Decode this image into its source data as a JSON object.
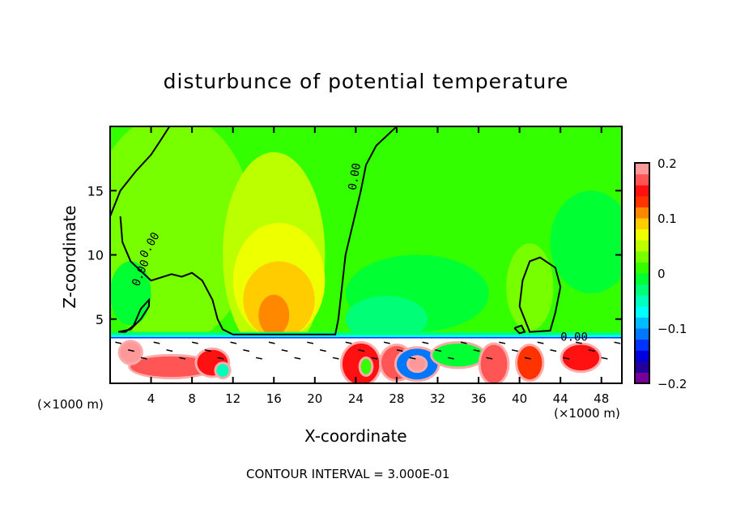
{
  "chart_data": {
    "type": "heatmap",
    "title": "disturbunce of potential temperature",
    "xlabel": "X-coordinate",
    "ylabel": "Z-coordinate",
    "x_unit_label": "(×1000 m)",
    "x_unit_label_right": "(×1000 m)",
    "xlim": [
      0,
      50
    ],
    "ylim": [
      0,
      20
    ],
    "xticks": [
      4,
      8,
      12,
      16,
      20,
      24,
      28,
      32,
      36,
      40,
      44,
      48
    ],
    "yticks": [
      5,
      10,
      15
    ],
    "colorbar": {
      "range": [
        -0.2,
        0.2
      ],
      "step": 0.02,
      "tick_values": [
        0.2,
        0.1,
        0,
        -0.1,
        -0.2
      ],
      "tick_labels": [
        "0.2",
        "0.1",
        "0",
        "−0.1",
        "−0.2"
      ],
      "colors_low_to_high": [
        "#770099",
        "#220099",
        "#0000dd",
        "#0033ff",
        "#0077ff",
        "#00bbff",
        "#00ffff",
        "#00ffbb",
        "#00ff77",
        "#00ff33",
        "#33ff00",
        "#77ff00",
        "#bbff00",
        "#eeff00",
        "#ffcc00",
        "#ff8800",
        "#ff3300",
        "#ff1111",
        "#ff5555",
        "#ff9999"
      ]
    },
    "background_value": 0.01,
    "features": [
      {
        "x": 6,
        "z": 12,
        "rx": 8,
        "rz": 9,
        "value": 0.025
      },
      {
        "x": 16,
        "z": 10,
        "rx": 5,
        "rz": 8,
        "value": 0.045
      },
      {
        "x": 16.5,
        "z": 8,
        "rx": 4.5,
        "rz": 4.5,
        "value": 0.065
      },
      {
        "x": 16.5,
        "z": 6.5,
        "rx": 3.5,
        "rz": 3,
        "value": 0.085
      },
      {
        "x": 16,
        "z": 5.3,
        "rx": 1.5,
        "rz": 1.6,
        "value": 0.11
      },
      {
        "x": 2,
        "z": 7,
        "rx": 2,
        "rz": 2.5,
        "value": -0.01
      },
      {
        "x": 30,
        "z": 7,
        "rx": 7,
        "rz": 3,
        "value": -0.01
      },
      {
        "x": 27,
        "z": 5,
        "rx": 4,
        "rz": 1.8,
        "value": -0.03
      },
      {
        "x": 47,
        "z": 11,
        "rx": 4,
        "rz": 4,
        "value": -0.01
      },
      {
        "x": 41,
        "z": 7.5,
        "rx": 2.3,
        "rz": 3.4,
        "value": 0.025
      }
    ],
    "lower_layer_top": 3.5,
    "lower_features": [
      {
        "x": 6,
        "z": 1.3,
        "rx": 4,
        "rz": 0.8,
        "value": 0.17
      },
      {
        "x": 2,
        "z": 2.4,
        "rx": 1,
        "rz": 0.8,
        "value": 0.19
      },
      {
        "x": 10,
        "z": 1.6,
        "rx": 1.5,
        "rz": 1,
        "value": 0.15
      },
      {
        "x": 11,
        "z": 1,
        "rx": 0.6,
        "rz": 0.5,
        "value": -0.05
      },
      {
        "x": 24.5,
        "z": 1.5,
        "rx": 1.8,
        "rz": 1.6,
        "value": 0.15
      },
      {
        "x": 25,
        "z": 1.3,
        "rx": 0.5,
        "rz": 0.6,
        "value": 0.0
      },
      {
        "x": 28,
        "z": 1.6,
        "rx": 1.5,
        "rz": 1.3,
        "value": 0.17
      },
      {
        "x": 30,
        "z": 1.5,
        "rx": 2,
        "rz": 1.2,
        "value": -0.12
      },
      {
        "x": 30,
        "z": 1.5,
        "rx": 0.8,
        "rz": 0.5,
        "value": 0.2
      },
      {
        "x": 34,
        "z": 2.2,
        "rx": 2.5,
        "rz": 0.9,
        "value": -0.02
      },
      {
        "x": 37.5,
        "z": 1.5,
        "rx": 1.3,
        "rz": 1.5,
        "value": 0.16
      },
      {
        "x": 41,
        "z": 1.6,
        "rx": 1.2,
        "rz": 1.3,
        "value": 0.12
      },
      {
        "x": 46,
        "z": 2,
        "rx": 1.8,
        "rz": 1,
        "value": 0.15
      }
    ],
    "contour_interval_text": "CONTOUR INTERVAL = 3.000E-01",
    "contour_label": "0.00",
    "zero_contours": [
      [
        [
          0,
          13
        ],
        [
          1,
          15
        ],
        [
          2.5,
          16.5
        ],
        [
          4,
          17.8
        ],
        [
          5,
          19
        ],
        [
          5.8,
          20
        ]
      ],
      [
        [
          0.8,
          4
        ],
        [
          2,
          4.2
        ],
        [
          3,
          5
        ],
        [
          3.8,
          6
        ],
        [
          3.8,
          6.5
        ],
        [
          3,
          5.8
        ],
        [
          2.3,
          4.5
        ],
        [
          1.5,
          4
        ],
        [
          1,
          4
        ]
      ],
      [
        [
          1,
          13
        ],
        [
          1.2,
          11
        ],
        [
          2,
          9.5
        ],
        [
          4,
          8
        ],
        [
          6,
          8.5
        ],
        [
          7,
          8.3
        ],
        [
          8,
          8.6
        ],
        [
          9,
          8
        ],
        [
          10,
          6.5
        ],
        [
          10.5,
          5
        ],
        [
          11,
          4.2
        ],
        [
          12,
          3.8
        ],
        [
          18,
          3.8
        ],
        [
          22,
          3.8
        ],
        [
          22.3,
          5
        ],
        [
          23,
          10
        ],
        [
          24.5,
          15
        ],
        [
          25,
          17
        ],
        [
          26,
          18.5
        ],
        [
          28,
          20
        ]
      ],
      [
        [
          39.5,
          4.3
        ],
        [
          40,
          3.9
        ],
        [
          40.5,
          4
        ],
        [
          40.2,
          4.5
        ],
        [
          39.5,
          4.3
        ]
      ],
      [
        [
          40,
          6
        ],
        [
          40.3,
          8
        ],
        [
          41,
          9.5
        ],
        [
          42,
          9.8
        ],
        [
          43.5,
          9
        ],
        [
          44,
          7.5
        ],
        [
          43.5,
          5.5
        ],
        [
          43,
          4.1
        ],
        [
          41,
          4
        ],
        [
          40,
          6
        ]
      ]
    ]
  }
}
